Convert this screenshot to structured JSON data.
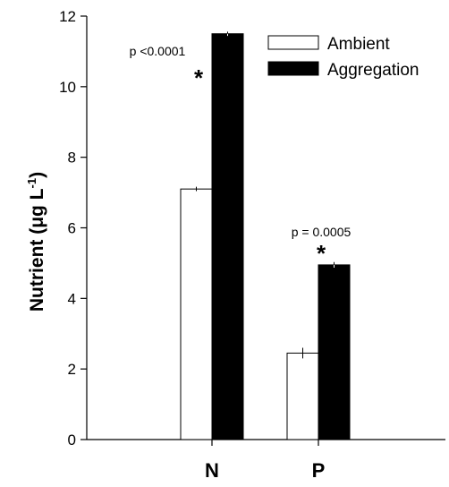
{
  "chart_data": {
    "type": "bar",
    "categories": [
      "N",
      "P"
    ],
    "series": [
      {
        "name": "Ambient",
        "values": [
          7.1,
          2.45
        ],
        "errors": [
          0.06,
          0.15
        ],
        "color": "#ffffff"
      },
      {
        "name": "Aggregation",
        "values": [
          11.5,
          4.95
        ],
        "errors": [
          0.06,
          0.08
        ],
        "color": "#000000"
      }
    ],
    "ylabel_main": "Nutrient (μg L",
    "ylabel_sup": "-1",
    "ylabel_close": ")",
    "xlabel": "",
    "ylim": [
      0,
      12
    ],
    "yticks": [
      "0",
      "2",
      "4",
      "6",
      "8",
      "10",
      "12"
    ],
    "legend_position": "top-right",
    "annotations": [
      {
        "category": "N",
        "text": "p <0.0001",
        "marker": "*"
      },
      {
        "category": "P",
        "text": "p = 0.0005",
        "marker": "*"
      }
    ]
  }
}
